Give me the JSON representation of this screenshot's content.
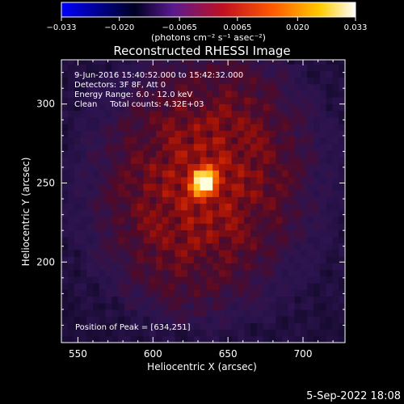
{
  "chart_data": {
    "type": "heatmap",
    "title": "Reconstructed RHESSI Image",
    "xlabel": "Heliocentric X (arcsec)",
    "ylabel": "Heliocentric Y (arcsec)",
    "xlim": [
      539,
      728
    ],
    "ylim": [
      149,
      328
    ],
    "x_ticks": [
      550,
      600,
      650,
      700
    ],
    "y_ticks": [
      200,
      250,
      300
    ],
    "colorbar": {
      "label": "(photons cm⁻² s⁻¹ asec⁻²)",
      "range": [
        -0.033,
        0.033
      ],
      "tick_values": [
        -0.033,
        -0.02,
        -0.0065,
        0.0065,
        0.02,
        0.033
      ],
      "tick_labels": [
        "−0.033",
        "−0.020",
        "−0.0065",
        "0.0065",
        "0.020",
        "0.033"
      ],
      "colormap": [
        "#0000ff",
        "#000000",
        "#7a1fa0",
        "#d01010",
        "#ff6000",
        "#ffd000",
        "#ffffff"
      ]
    },
    "annotations": [
      "9-Jun-2016 15:40:52.000 to 15:42:32.000",
      "Detectors: 3F 8F, Att 0",
      "Energy Range: 6.0 - 12.0 keV",
      "Clean     Total counts: 4.32E+03",
      "Position of Peak = [634,251]"
    ],
    "peak": {
      "x": 634,
      "y": 251
    },
    "footer_date": "5-Sep-2022 18:08"
  }
}
